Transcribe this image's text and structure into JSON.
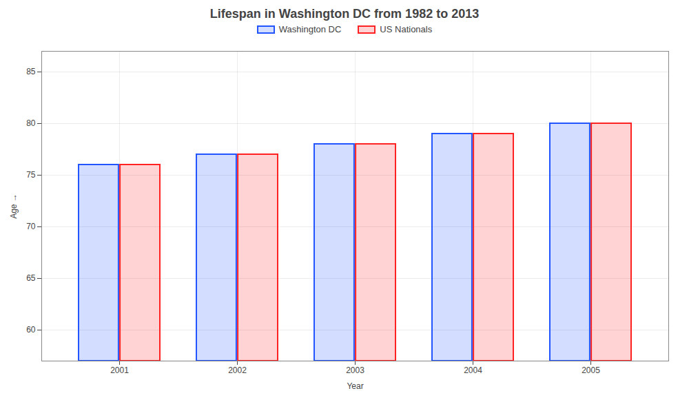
{
  "chart_data": {
    "type": "bar",
    "title": "Lifespan in Washington DC from 1982 to 2013",
    "xlabel": "Year",
    "ylabel": "Age",
    "categories": [
      "2001",
      "2002",
      "2003",
      "2004",
      "2005"
    ],
    "series": [
      {
        "name": "Washington DC",
        "color": "#2255ff",
        "values": [
          76,
          77,
          78,
          79,
          80
        ]
      },
      {
        "name": "US Nationals",
        "color": "#ff2222",
        "values": [
          76,
          77,
          78,
          79,
          80
        ]
      }
    ],
    "ylim": [
      57,
      87
    ],
    "yticks": [
      60,
      65,
      70,
      75,
      80,
      85
    ],
    "grid": true,
    "legend": "top"
  }
}
